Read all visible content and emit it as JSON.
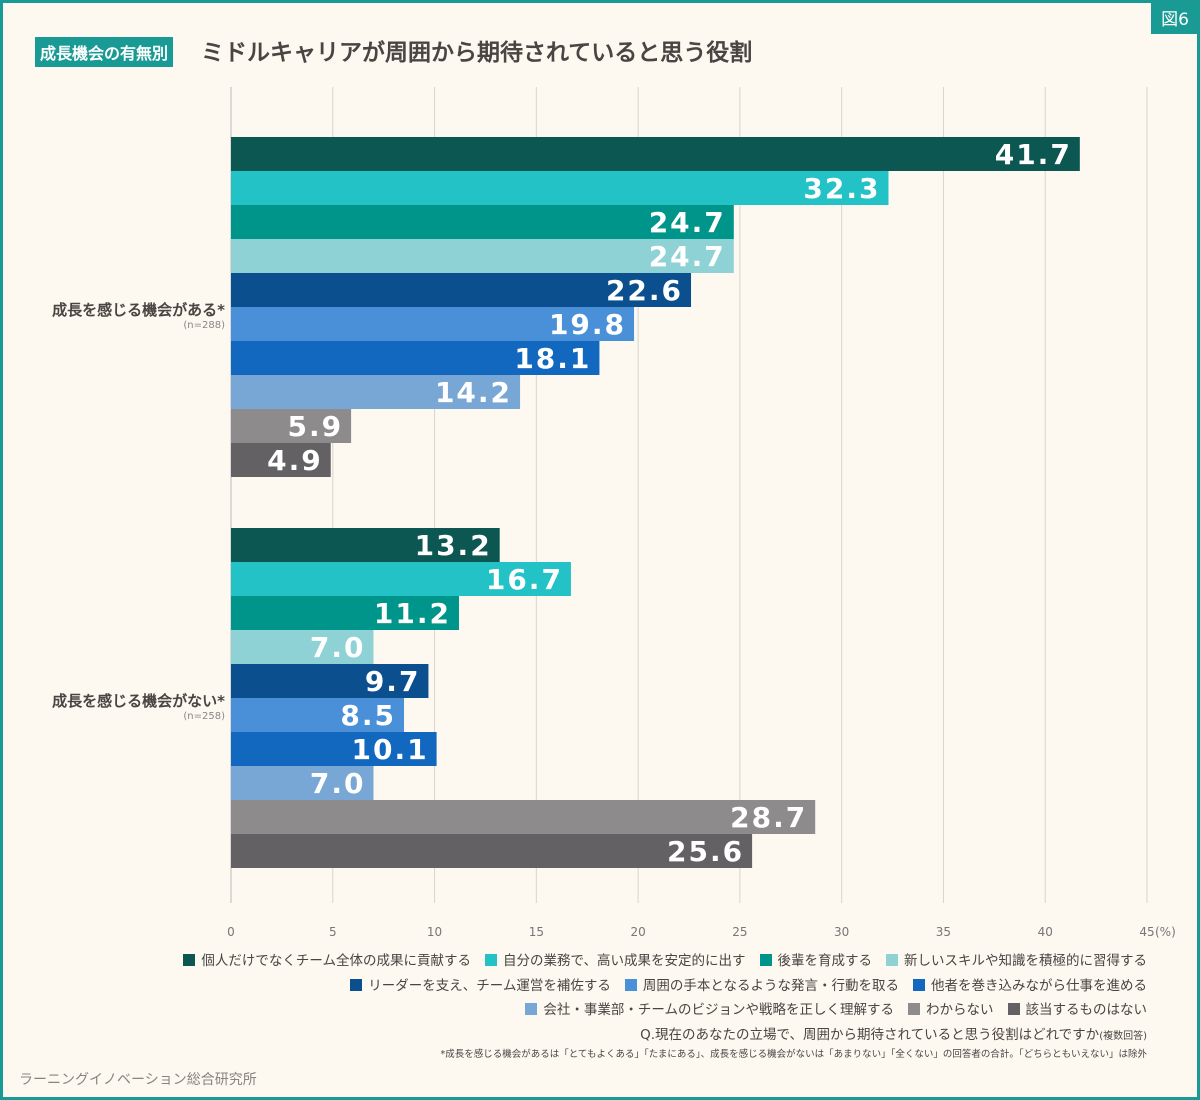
{
  "figure_tag": "図6",
  "title_badge": "成長機会の有無別",
  "title": "ミドルキャリアが周囲から期待されていると思う役割",
  "chart_data": {
    "type": "bar",
    "orientation": "horizontal",
    "title": "ミドルキャリアが周囲から期待されていると思う役割",
    "groups": [
      {
        "label": "成長を感じる機会がある*",
        "n": "(n=288)"
      },
      {
        "label": "成長を感じる機会がない*",
        "n": "(n=258)"
      }
    ],
    "series": [
      {
        "name": "個人だけでなくチーム全体の成果に貢献する",
        "color": "#0d5753",
        "values": [
          41.7,
          13.2
        ]
      },
      {
        "name": "自分の業務で、高い成果を安定的に出す",
        "color": "#22c2c6",
        "values": [
          32.3,
          16.7
        ]
      },
      {
        "name": "後輩を育成する",
        "color": "#00958a",
        "values": [
          24.7,
          11.2
        ]
      },
      {
        "name": "新しいスキルや知識を積極的に習得する",
        "color": "#8fd2d6",
        "values": [
          24.7,
          7.0
        ]
      },
      {
        "name": "リーダーを支え、チーム運営を補佐する",
        "color": "#0b4f8e",
        "values": [
          22.6,
          9.7
        ]
      },
      {
        "name": "周囲の手本となるような発言・行動を取る",
        "color": "#4a90d9",
        "values": [
          19.8,
          8.5
        ]
      },
      {
        "name": "他者を巻き込みながら仕事を進める",
        "color": "#1268bf",
        "values": [
          18.1,
          10.1
        ]
      },
      {
        "name": "会社・事業部・チームのビジョンや戦略を正しく理解する",
        "color": "#78a7d6",
        "values": [
          14.2,
          7.0
        ]
      },
      {
        "name": "わからない",
        "color": "#8e8b8d",
        "values": [
          5.9,
          28.7
        ]
      },
      {
        "name": "該当するものはない",
        "color": "#636163",
        "values": [
          4.9,
          25.6
        ]
      }
    ],
    "xlim": [
      0,
      45
    ],
    "xticks": [
      "0",
      "5",
      "10",
      "15",
      "20",
      "25",
      "30",
      "35",
      "40",
      "45"
    ],
    "xunit": "(%)",
    "grid": true,
    "legend": "bottom-right"
  },
  "question": "Q.現在のあなたの立場で、周囲から期待されていると思う役割はどれですか",
  "question_note": "(複数回答)",
  "footnote": "*成長を感じる機会があるは「とてもよくある」「たまにある」、成長を感じる機会がないは「あまりない」「全くない」の回答者の合計。「どちらともいえない」は除外",
  "organization": "ラーニングイノベーション総合研究所"
}
